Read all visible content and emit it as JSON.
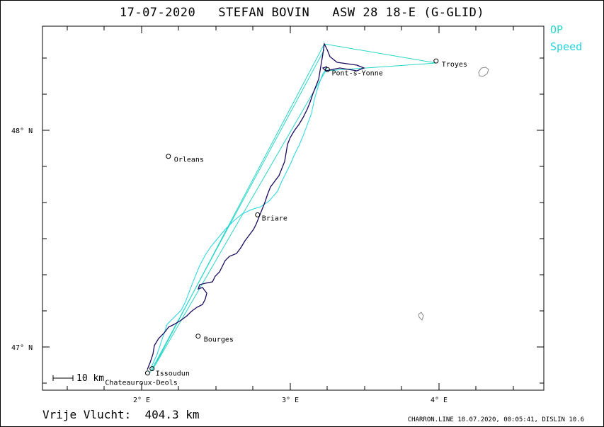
{
  "header": {
    "title": "17-07-2020   STEFAN BOVIN   ASW 28 18-E (G-GLID)"
  },
  "legend": {
    "op_label": "OP",
    "speed_label": "Speed",
    "op_color": "#28d6c8",
    "speed_color": "#1fd6e0"
  },
  "summary": {
    "text": "Vrije Vlucht:  404.3 km"
  },
  "footer": {
    "text": "CHARRON.LINE 18.07.2020, 00:05:41, DISLIN 10.6"
  },
  "scale_bar": {
    "label": "10  km"
  },
  "axes": {
    "x_ticks": [
      "2° E",
      "3° E",
      "4° E"
    ],
    "y_ticks": [
      "48° N",
      "47° N"
    ]
  },
  "towns": [
    {
      "name": "Troyes",
      "lon": 3.98,
      "lat": 48.32
    },
    {
      "name": "Pont-s-Yonne",
      "lon": 3.25,
      "lat": 48.28
    },
    {
      "name": "Orleans",
      "lon": 2.18,
      "lat": 47.88
    },
    {
      "name": "Briare",
      "lon": 2.78,
      "lat": 47.61
    },
    {
      "name": "Bourges",
      "lon": 2.38,
      "lat": 47.05
    },
    {
      "name": "Issoudun",
      "lon": 2.07,
      "lat": 46.9
    },
    {
      "name": "Chateauroux-Deols",
      "lon": 2.04,
      "lat": 46.88
    }
  ],
  "colors": {
    "track": "#1b0a5e",
    "speed": "#1fd6e0",
    "op": "#28d6c8",
    "frame": "#000000"
  }
}
